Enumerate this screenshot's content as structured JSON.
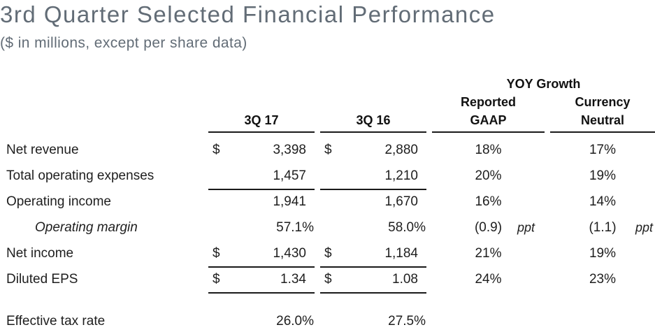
{
  "title": "3rd Quarter Selected Financial Performance",
  "subtitle": "($ in millions, except per share data)",
  "colors": {
    "title_text": "#626c76",
    "body_text": "#1e1e1e",
    "rule": "#1a1a1a",
    "background": "#ffffff"
  },
  "table": {
    "group_header": "YOY Growth",
    "columns": [
      {
        "label": "3Q 17"
      },
      {
        "label": "3Q 16"
      },
      {
        "label_line1": "Reported",
        "label_line2": "GAAP"
      },
      {
        "label_line1": "Currency",
        "label_line2": "Neutral"
      }
    ],
    "rows": [
      {
        "label": "Net revenue",
        "d17": "$",
        "v17": "3,398",
        "d16": "$",
        "v16": "2,880",
        "gaap": "18%",
        "neutral": "17%"
      },
      {
        "label": "Total operating expenses",
        "v17": "1,457",
        "v16": "1,210",
        "gaap": "20%",
        "neutral": "19%"
      },
      {
        "label": "Operating income",
        "v17": "1,941",
        "v16": "1,670",
        "gaap": "16%",
        "neutral": "14%"
      },
      {
        "label": "Operating margin",
        "v17": "57.1%",
        "v16": "58.0%",
        "gaap": "(0.9)",
        "gaap_unit": "ppt",
        "neutral": "(1.1)",
        "neutral_unit": "ppt"
      },
      {
        "label": "Net income",
        "d17": "$",
        "v17": "1,430",
        "d16": "$",
        "v16": "1,184",
        "gaap": "21%",
        "neutral": "19%"
      },
      {
        "label": "Diluted EPS",
        "d17": "$",
        "v17": "1.34",
        "d16": "$",
        "v16": "1.08",
        "gaap": "24%",
        "neutral": "23%"
      },
      {
        "label": "Effective tax rate",
        "v17": "26.0%",
        "v16": "27.5%"
      }
    ]
  }
}
